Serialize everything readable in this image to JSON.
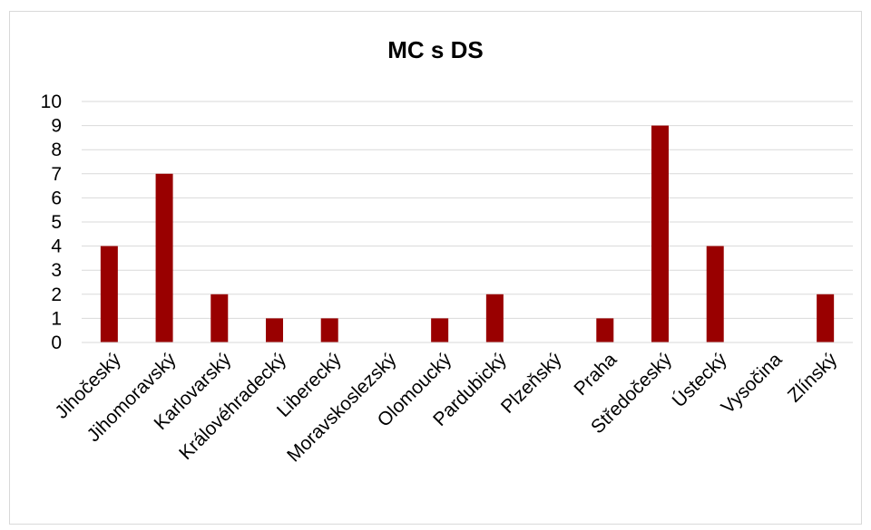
{
  "chart_data": {
    "type": "bar",
    "title": "MC s DS",
    "xlabel": "",
    "ylabel": "",
    "categories": [
      "Jihočeský",
      "Jihomoravský",
      "Karlovarský",
      "Královéhradecký",
      "Liberecký",
      "Moravskoslezský",
      "Olomoucký",
      "Pardubický",
      "Plzeňský",
      "Praha",
      "Středočeský",
      "Ústecký",
      "Vysočina",
      "Zlínský"
    ],
    "values": [
      4,
      7,
      2,
      1,
      1,
      0,
      1,
      2,
      0,
      1,
      9,
      4,
      0,
      2
    ],
    "ylim": [
      0,
      10
    ],
    "yticks": [
      0,
      1,
      2,
      3,
      4,
      5,
      6,
      7,
      8,
      9,
      10
    ],
    "grid": true,
    "legend": "none",
    "bar_color": "#990000",
    "grid_color": "#d9d9d9"
  }
}
